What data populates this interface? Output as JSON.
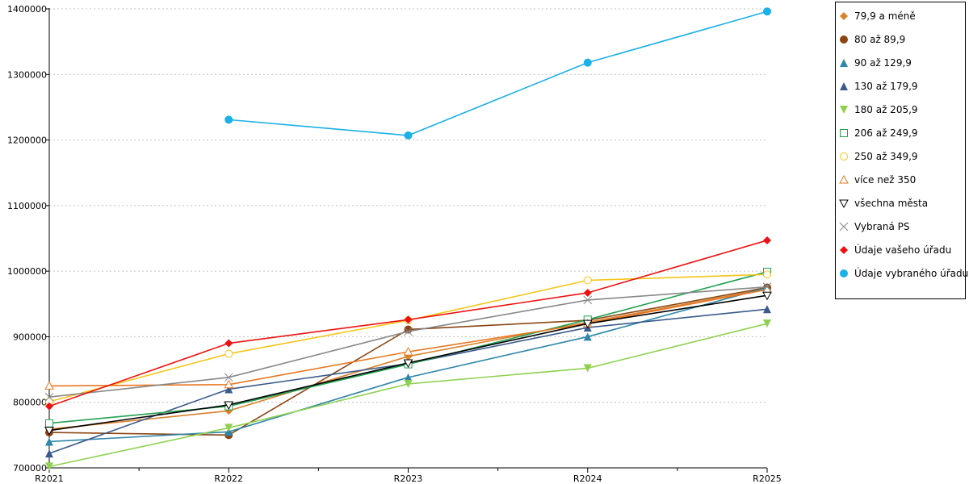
{
  "chart_data": {
    "type": "line",
    "categories": [
      "R2021",
      "R2022",
      "R2023",
      "R2024",
      "R2025"
    ],
    "ylim": [
      700000,
      1400000
    ],
    "y_ticks": [
      "700000",
      "800000",
      "900000",
      "1000000",
      "1100000",
      "1200000",
      "1300000",
      "1400000"
    ],
    "grid": "horizontal dotted",
    "legend_position": "right",
    "series": [
      {
        "name": "79,9 a méně",
        "color": "#d9822b",
        "marker": "diamond",
        "values": [
          759000,
          787000,
          870000,
          922000,
          973000
        ]
      },
      {
        "name": "80 až 89,9",
        "color": "#8b4513",
        "marker": "circle",
        "values": [
          754000,
          750000,
          911000,
          925000,
          975000
        ]
      },
      {
        "name": "90 až 129,9",
        "color": "#2e86a8",
        "marker": "triangle-up",
        "values": [
          740000,
          755000,
          838000,
          900000,
          975000
        ]
      },
      {
        "name": "130 až 179,9",
        "color": "#3a5a8c",
        "marker": "triangle-up",
        "values": [
          722000,
          820000,
          859000,
          914000,
          942000
        ]
      },
      {
        "name": "180 až 205,9",
        "color": "#8fd14f",
        "marker": "triangle-down",
        "values": [
          702000,
          761000,
          828000,
          852000,
          920000
        ]
      },
      {
        "name": "206 až 249,9",
        "color": "#22a052",
        "marker": "square-open",
        "values": [
          768000,
          794000,
          858000,
          926000,
          999000
        ]
      },
      {
        "name": "250 až 349,9",
        "color": "#f5c518",
        "marker": "circle-open",
        "values": [
          801000,
          874000,
          925000,
          986000,
          995000
        ]
      },
      {
        "name": "více než 350",
        "color": "#e87722",
        "marker": "triangle-up-open",
        "values": [
          825000,
          827000,
          877000,
          920000,
          972000
        ]
      },
      {
        "name": "všechna města",
        "color": "#000000",
        "marker": "triangle-down-open",
        "values": [
          757000,
          796000,
          860000,
          920000,
          963000
        ]
      },
      {
        "name": "Vybraná PS",
        "color": "#888888",
        "marker": "x",
        "values": [
          808000,
          838000,
          908000,
          956000,
          976000
        ]
      },
      {
        "name": "Údaje vašeho úřadu",
        "color": "#ee1111",
        "marker": "diamond",
        "values": [
          794000,
          890000,
          926000,
          967000,
          1047000
        ]
      },
      {
        "name": "Údaje vybraného úřadu",
        "color": "#1ab0e8",
        "marker": "circle",
        "values": [
          null,
          1231000,
          1207000,
          1318000,
          1396000
        ]
      }
    ]
  }
}
